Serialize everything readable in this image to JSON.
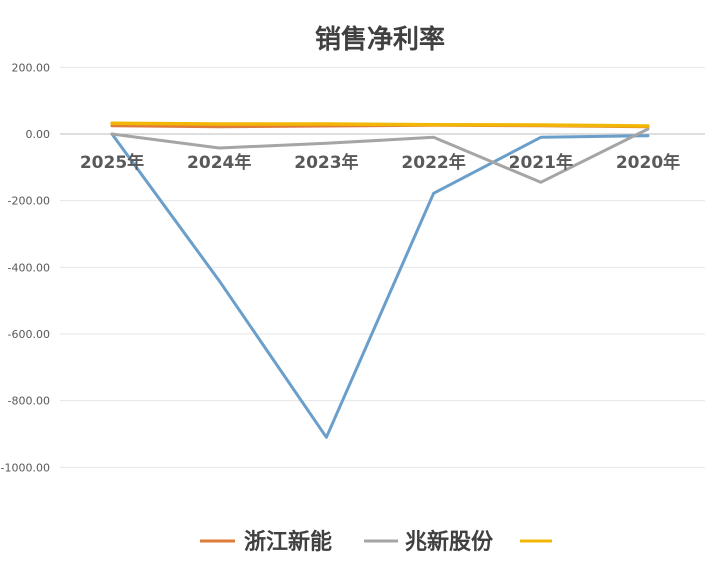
{
  "chart_data": {
    "type": "line",
    "title": "销售净利率",
    "categories": [
      "2025年",
      "2024年",
      "2023年",
      "2022年",
      "2021年",
      "2020年"
    ],
    "ylim": [
      -1000,
      200
    ],
    "yticks": [
      "200.00",
      "0.00",
      "-200.00",
      "-400.00",
      "-600.00",
      "-800.00",
      "-1000.00"
    ],
    "ytick_values": [
      200,
      0,
      -200,
      -400,
      -600,
      -800,
      -1000
    ],
    "grid": true,
    "legend_position": "bottom",
    "series": [
      {
        "name": "",
        "color": "#6a9fcb",
        "values": [
          0,
          -440,
          -910,
          -178,
          -10,
          -5
        ]
      },
      {
        "name": "浙江新能",
        "color": "#e07b39",
        "values": [
          25,
          22,
          24,
          26,
          25,
          22
        ]
      },
      {
        "name": "兆新股份",
        "color": "#a5a5a5",
        "values": [
          0,
          -42,
          -28,
          -10,
          -145,
          15
        ]
      },
      {
        "name": "",
        "color": "#f2b705",
        "values": [
          32,
          30,
          30,
          28,
          27,
          24
        ]
      }
    ]
  }
}
